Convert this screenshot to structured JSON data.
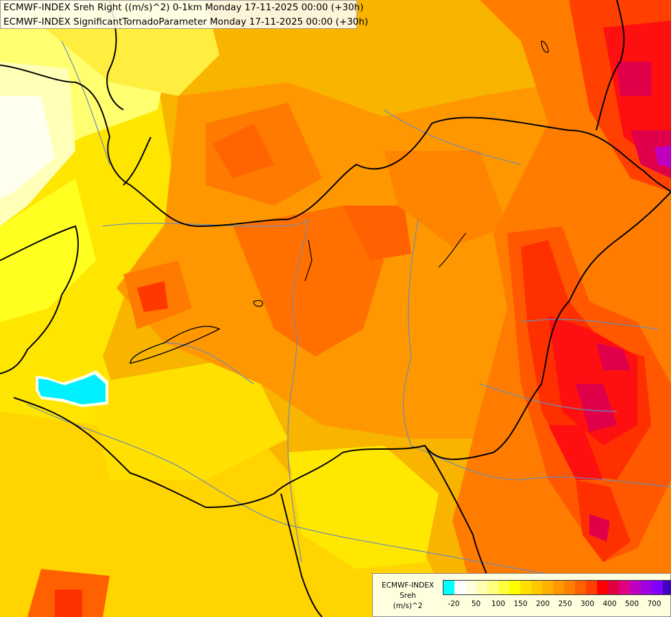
{
  "header": {
    "line1": "ECMWF-INDEX Sreh Right ((m/s)^2) 0-1km Monday 17-11-2025 00:00 (+30h)",
    "line2": "ECMWF-INDEX SignificantTornadoParameter Monday 17-11-2025 00:00 (+30h)"
  },
  "legend": {
    "model": "ECMWF-INDEX",
    "variable": "Sreh",
    "unit": "(m/s)^2",
    "colors": [
      "#00ffff",
      "#ffffff",
      "#ffffe0",
      "#ffffb0",
      "#ffff80",
      "#ffff40",
      "#ffff00",
      "#ffe000",
      "#ffc800",
      "#ffb000",
      "#ff9800",
      "#ff8000",
      "#ff6000",
      "#ff4000",
      "#ff0000",
      "#e00040",
      "#e00080",
      "#c000c0",
      "#a000e0",
      "#8000ff",
      "#4000c0",
      "#200090"
    ],
    "labels": [
      "-20",
      "50",
      "100",
      "150",
      "200",
      "250",
      "300",
      "400",
      "500",
      "700"
    ]
  },
  "colors": {
    "border": "#000000",
    "river": "#6a8cb8",
    "anomaly": "#00ffff"
  }
}
